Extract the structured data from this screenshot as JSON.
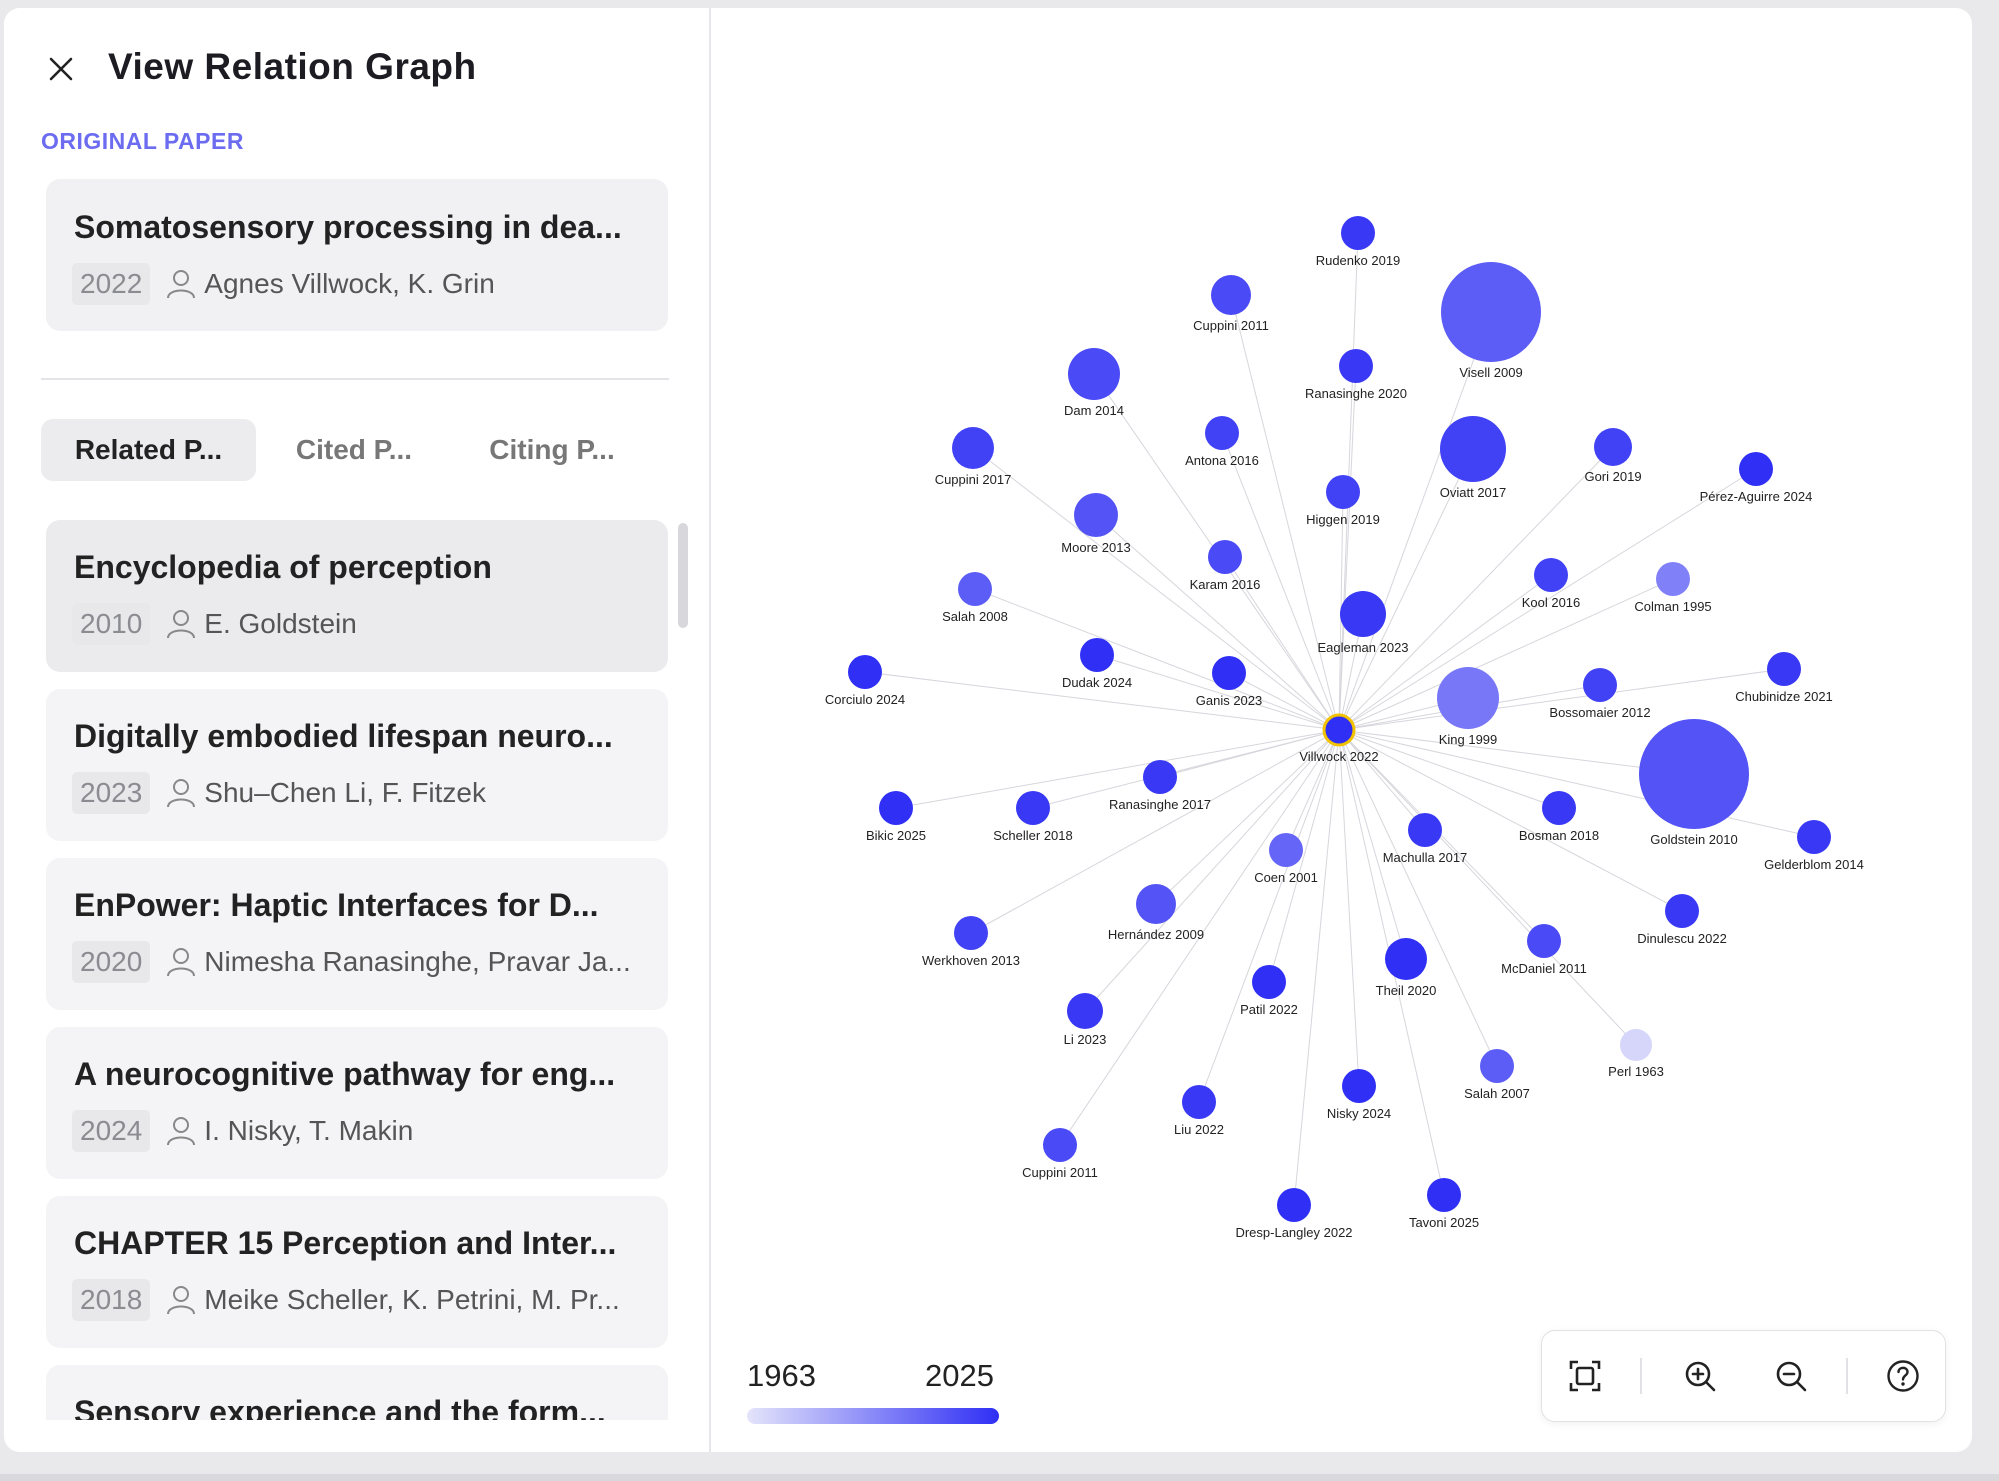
{
  "header": {
    "title": "View Relation Graph",
    "close_icon": "close-icon"
  },
  "original": {
    "section_label": "ORIGINAL PAPER",
    "paper": {
      "title": "Somatosensory processing in dea...",
      "year": "2022",
      "authors": "Agnes Villwock, K. Grin"
    }
  },
  "tabs": [
    {
      "label": "Related P...",
      "active": true
    },
    {
      "label": "Cited P...",
      "active": false
    },
    {
      "label": "Citing P...",
      "active": false
    }
  ],
  "papers": [
    {
      "title": "Encyclopedia of perception",
      "year": "2010",
      "authors": "E. Goldstein"
    },
    {
      "title": "Digitally embodied lifespan neuro...",
      "year": "2023",
      "authors": "Shu–Chen Li, F. Fitzek"
    },
    {
      "title": "EnPower: Haptic Interfaces for D...",
      "year": "2020",
      "authors": "Nimesha Ranasinghe, Pravar Ja..."
    },
    {
      "title": "A neurocognitive pathway for eng...",
      "year": "2024",
      "authors": "I. Nisky, T. Makin"
    },
    {
      "title": "CHAPTER 15 Perception and Inter...",
      "year": "2018",
      "authors": "Meike Scheller, K. Petrini, M. Pr..."
    },
    {
      "title": "Sensory experience and the form...",
      "year": "",
      "authors": ""
    }
  ],
  "graph": {
    "center": "Villwock 2022",
    "center_color": "#f2c200",
    "color_low": "#e4e4fb",
    "color_high": "#2f2ff5",
    "nodes": [
      {
        "label": "Rudenko 2019"
      },
      {
        "label": "Cuppini 2011"
      },
      {
        "label": "Visell 2009"
      },
      {
        "label": "Ranasinghe 2020"
      },
      {
        "label": "Dam 2014"
      },
      {
        "label": "Antona 2016"
      },
      {
        "label": "Oviatt 2017"
      },
      {
        "label": "Gori 2019"
      },
      {
        "label": "Cuppini 2017"
      },
      {
        "label": "Pérez-Aguirre 2024"
      },
      {
        "label": "Higgen 2019"
      },
      {
        "label": "Moore 2013"
      },
      {
        "label": "Karam 2016"
      },
      {
        "label": "Kool 2016"
      },
      {
        "label": "Colman 1995"
      },
      {
        "label": "Salah 2008"
      },
      {
        "label": "Eagleman 2023"
      },
      {
        "label": "Dudak 2024"
      },
      {
        "label": "Ganis 2023"
      },
      {
        "label": "Corciulo 2024"
      },
      {
        "label": "King 1999"
      },
      {
        "label": "Bossomaier 2012"
      },
      {
        "label": "Chubinidze 2021"
      },
      {
        "label": "Ranasinghe 2017"
      },
      {
        "label": "Bikic 2025"
      },
      {
        "label": "Scheller 2018"
      },
      {
        "label": "Goldstein 2010"
      },
      {
        "label": "Bosman 2018"
      },
      {
        "label": "Machulla 2017"
      },
      {
        "label": "Coen 2001"
      },
      {
        "label": "Gelderblom 2014"
      },
      {
        "label": "Hernández 2009"
      },
      {
        "label": "Werkhoven 2013"
      },
      {
        "label": "Dinulescu 2022"
      },
      {
        "label": "McDaniel 2011"
      },
      {
        "label": "Theil 2020"
      },
      {
        "label": "Patil 2022"
      },
      {
        "label": "Li 2023"
      },
      {
        "label": "Perl 1963"
      },
      {
        "label": "Salah 2007"
      },
      {
        "label": "Nisky 2024"
      },
      {
        "label": "Liu 2022"
      },
      {
        "label": "Cuppini 2011"
      },
      {
        "label": "Tavoni 2025"
      },
      {
        "label": "Dresp-Langley 2022"
      }
    ]
  },
  "legend": {
    "min_year": "1963",
    "max_year": "2025"
  },
  "toolbar": [
    {
      "name": "fit-view-icon"
    },
    {
      "name": "zoom-in-icon"
    },
    {
      "name": "zoom-out-icon"
    },
    {
      "name": "help-icon"
    }
  ]
}
